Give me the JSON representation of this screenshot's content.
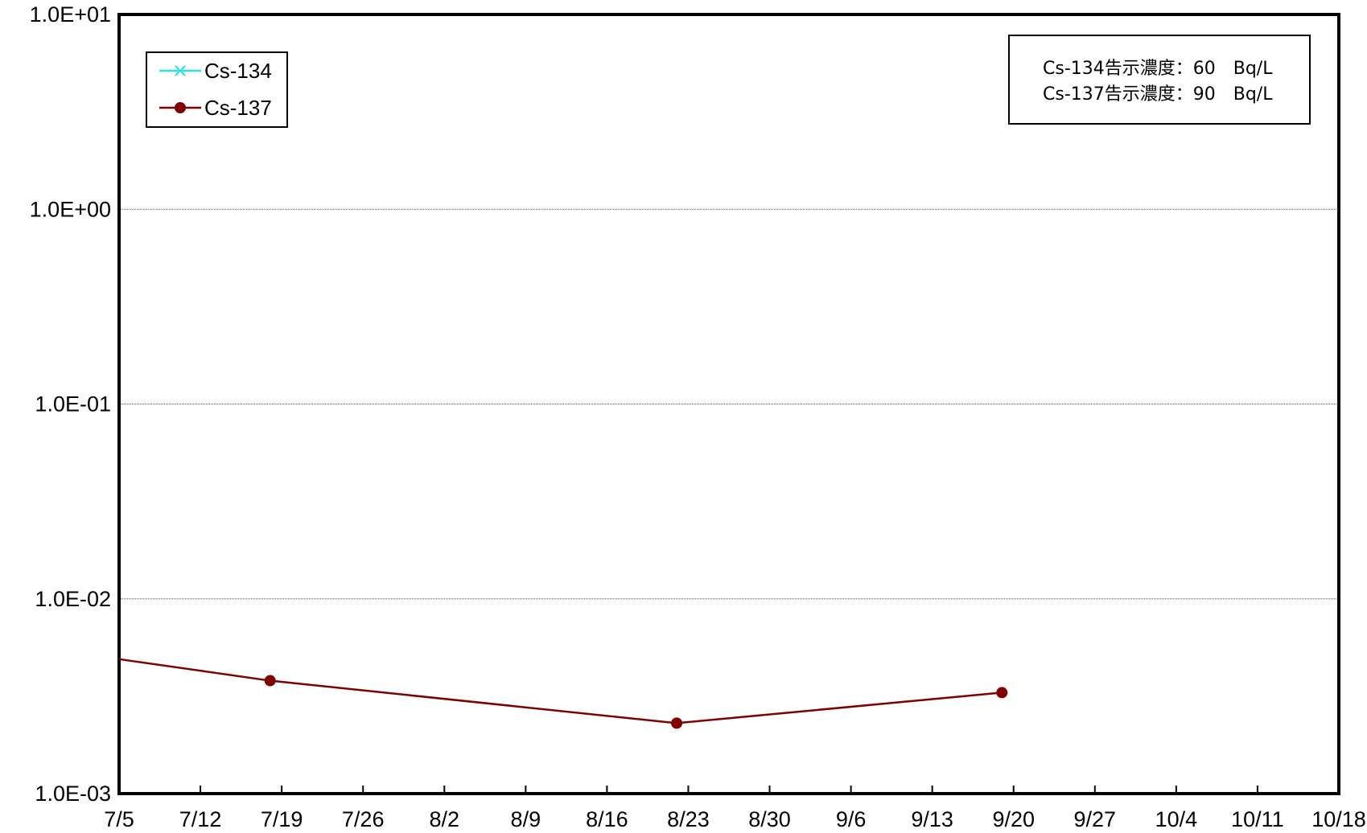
{
  "chart_data": {
    "type": "line",
    "title": "",
    "xlabel": "",
    "ylabel": "",
    "y_scale": "log",
    "ylim": [
      0.001,
      10
    ],
    "y_ticks": [
      {
        "value": 10,
        "label": "1.0E+01"
      },
      {
        "value": 1,
        "label": "1.0E+00"
      },
      {
        "value": 0.1,
        "label": "1.0E-01"
      },
      {
        "value": 0.01,
        "label": "1.0E-02"
      },
      {
        "value": 0.001,
        "label": "1.0E-03"
      }
    ],
    "x_ticks": [
      "7/5",
      "7/12",
      "7/19",
      "7/26",
      "8/2",
      "8/9",
      "8/16",
      "8/23",
      "8/30",
      "9/6",
      "9/13",
      "9/20",
      "9/27",
      "10/4",
      "10/11",
      "10/18"
    ],
    "x_tick_interval_days": 7,
    "grid": "horizontal",
    "legend_position": "top-left",
    "series": [
      {
        "name": "Cs-134",
        "color": "#33e0e0",
        "marker": "x",
        "points": []
      },
      {
        "name": "Cs-137",
        "color": "#800000",
        "marker": "circle",
        "points": [
          {
            "x": "7/5",
            "y": 0.0049,
            "marker": false
          },
          {
            "x": "7/18",
            "y": 0.0038
          },
          {
            "x": "8/22",
            "y": 0.0023
          },
          {
            "x": "9/19",
            "y": 0.0033
          }
        ]
      }
    ],
    "annotation": [
      "Cs-134告示濃度：60　Bq/L",
      "Cs-137告示濃度：90　Bq/L"
    ]
  }
}
